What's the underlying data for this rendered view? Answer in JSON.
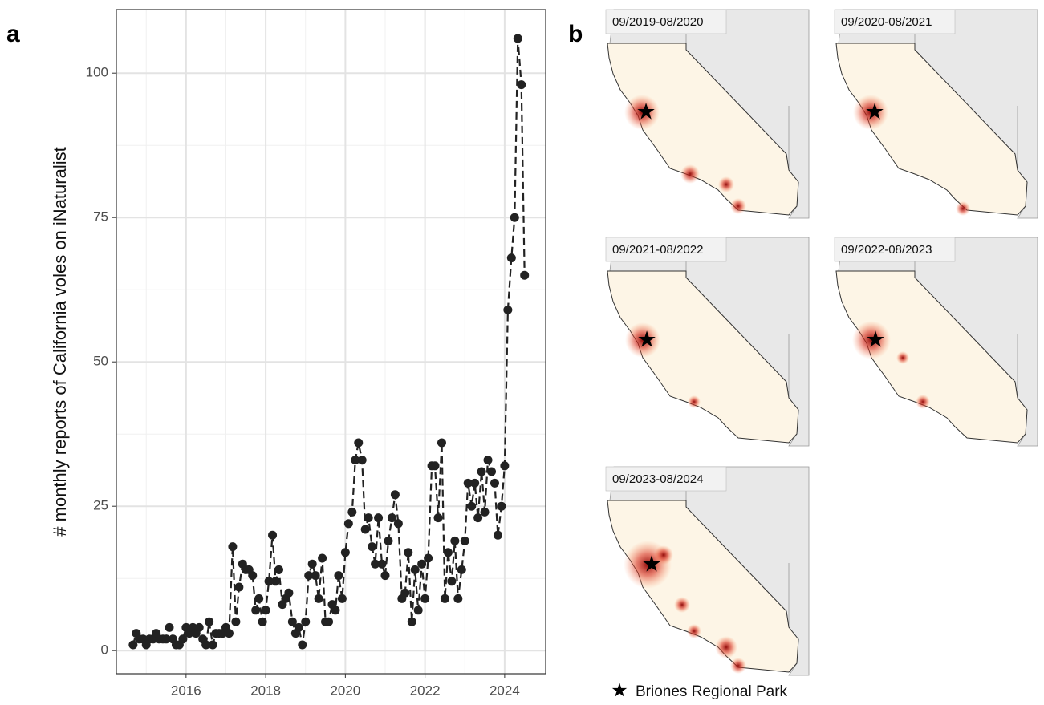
{
  "chart_data": {
    "type": "line",
    "panel_label": "a",
    "ylabel": "# monthly reports of California voles on iNaturalist",
    "x": [
      2014.67,
      2014.75,
      2014.83,
      2014.92,
      2015,
      2015.08,
      2015.17,
      2015.25,
      2015.33,
      2015.42,
      2015.5,
      2015.58,
      2015.67,
      2015.75,
      2015.83,
      2015.92,
      2016,
      2016.08,
      2016.17,
      2016.25,
      2016.33,
      2016.42,
      2016.5,
      2016.58,
      2016.67,
      2016.75,
      2016.83,
      2016.92,
      2017,
      2017.08,
      2017.17,
      2017.25,
      2017.33,
      2017.42,
      2017.5,
      2017.58,
      2017.67,
      2017.75,
      2017.83,
      2017.92,
      2018,
      2018.08,
      2018.17,
      2018.25,
      2018.33,
      2018.42,
      2018.5,
      2018.58,
      2018.67,
      2018.75,
      2018.83,
      2018.92,
      2019,
      2019.08,
      2019.17,
      2019.25,
      2019.33,
      2019.42,
      2019.5,
      2019.58,
      2019.67,
      2019.75,
      2019.83,
      2019.92,
      2020,
      2020.08,
      2020.17,
      2020.25,
      2020.33,
      2020.42,
      2020.5,
      2020.58,
      2020.67,
      2020.75,
      2020.83,
      2020.92,
      2021,
      2021.08,
      2021.17,
      2021.25,
      2021.33,
      2021.42,
      2021.5,
      2021.58,
      2021.67,
      2021.75,
      2021.83,
      2021.92,
      2022,
      2022.08,
      2022.17,
      2022.25,
      2022.33,
      2022.42,
      2022.5,
      2022.58,
      2022.67,
      2022.75,
      2022.83,
      2022.92,
      2023,
      2023.08,
      2023.17,
      2023.25,
      2023.33,
      2023.42,
      2023.5,
      2023.58,
      2023.67,
      2023.75,
      2023.83,
      2023.92,
      2024,
      2024.08,
      2024.17,
      2024.25,
      2024.33,
      2024.42,
      2024.5
    ],
    "values": [
      1,
      3,
      2,
      2,
      1,
      2,
      2,
      3,
      2,
      2,
      2,
      4,
      2,
      1,
      1,
      2,
      4,
      3,
      4,
      3,
      4,
      2,
      1,
      5,
      1,
      3,
      3,
      3,
      4,
      3,
      18,
      5,
      11,
      15,
      14,
      14,
      13,
      7,
      9,
      5,
      7,
      12,
      20,
      12,
      14,
      8,
      9,
      10,
      5,
      3,
      4,
      1,
      5,
      13,
      15,
      13,
      9,
      16,
      5,
      5,
      8,
      7,
      13,
      9,
      17,
      22,
      24,
      33,
      36,
      33,
      21,
      23,
      18,
      15,
      23,
      15,
      13,
      19,
      23,
      27,
      22,
      9,
      10,
      17,
      5,
      14,
      7,
      15,
      9,
      16,
      32,
      32,
      23,
      36,
      9,
      17,
      12,
      19,
      9,
      14,
      19,
      29,
      25,
      29,
      23,
      31,
      24,
      33,
      31,
      29,
      20,
      25,
      32,
      59,
      68,
      75,
      106,
      98,
      65
    ],
    "color": "#222222",
    "line_style": "dashed",
    "xlim": [
      2014.25,
      2025.03
    ],
    "ylim": [
      -4,
      111
    ],
    "xticks": [
      2016,
      2018,
      2020,
      2022,
      2024
    ],
    "yticks": [
      0,
      25,
      50,
      75,
      100
    ],
    "x_minor_grid": [
      2015,
      2017,
      2019,
      2021,
      2023
    ],
    "y_minor_grid": [
      12.5,
      37.5,
      62.5,
      87.5
    ],
    "grid": true
  },
  "maps": {
    "panel_label": "b",
    "panels": [
      {
        "label": "09/2019-08/2020"
      },
      {
        "label": "09/2020-08/2021"
      },
      {
        "label": "09/2021-08/2022"
      },
      {
        "label": "09/2022-08/2023"
      },
      {
        "label": "09/2023-08/2024"
      }
    ],
    "legend": "Briones Regional Park"
  }
}
